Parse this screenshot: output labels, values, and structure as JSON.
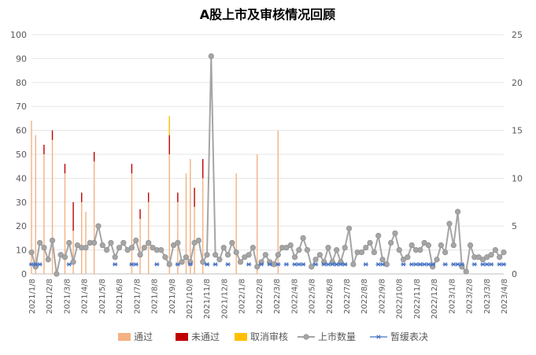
{
  "chart_data": {
    "type": "bar",
    "title": "A股上市及审核情况回顾",
    "y_left": {
      "min": 0,
      "max": 100,
      "ticks": [
        0,
        10,
        20,
        30,
        40,
        50,
        60,
        70,
        80,
        90,
        100
      ]
    },
    "y_right": {
      "min": 0,
      "max": 25,
      "ticks": [
        0,
        5,
        10,
        15,
        20,
        25
      ]
    },
    "x_tick_labels": [
      "2021/1/8",
      "2021/2/8",
      "2021/3/8",
      "2021/4/8",
      "2021/5/8",
      "2021/6/8",
      "2021/7/8",
      "2021/8/8",
      "2021/9/8",
      "2021/10/8",
      "2021/11/8",
      "2021/12/8",
      "2022/1/8",
      "2022/2/8",
      "2022/3/8",
      "2022/4/8",
      "2022/5/8",
      "2022/6/8",
      "2022/7/8",
      "2022/8/8",
      "2022/9/8",
      "2022/10/8",
      "2022/11/8",
      "2022/12/8",
      "2023/1/8",
      "2023/2/8",
      "2023/3/8",
      "2023/4/8"
    ],
    "colors": {
      "pass": "#F4B183",
      "fail": "#C00000",
      "cancel": "#FFC000",
      "listing": "#A5A5A5",
      "suspend": "#4472C4"
    },
    "legend": [
      "通过",
      "未通过",
      "取消审核",
      "上市数量",
      "暂缓表决"
    ],
    "listings": [
      9,
      3,
      13,
      11,
      6,
      14,
      0,
      8,
      7,
      13,
      5,
      12,
      11,
      11,
      13,
      13,
      20,
      12,
      10,
      13,
      7,
      11,
      13,
      10,
      11,
      14,
      8,
      11,
      13,
      11,
      10,
      10,
      7,
      4,
      12,
      13,
      5,
      7,
      5,
      13,
      14,
      5,
      8,
      91,
      8,
      6,
      11,
      8,
      13,
      9,
      5,
      7,
      8,
      11,
      3,
      5,
      8,
      5,
      4,
      8,
      11,
      11,
      12,
      7,
      10,
      15,
      10,
      3,
      6,
      8,
      5,
      11,
      5,
      10,
      5,
      11,
      19,
      4,
      9,
      9,
      11,
      13,
      9,
      16,
      6,
      4,
      13,
      17,
      10,
      6,
      7,
      12,
      10,
      10,
      13,
      12,
      3,
      6,
      12,
      9,
      21,
      12,
      26,
      3,
      1,
      12,
      7,
      7,
      6,
      7,
      8,
      10,
      7,
      9
    ],
    "pass_counts": [
      64,
      58,
      0,
      50,
      0,
      56,
      0,
      0,
      42,
      0,
      18,
      0,
      30,
      26,
      0,
      47,
      0,
      0,
      0,
      0,
      0,
      0,
      0,
      0,
      42,
      0,
      23,
      0,
      30,
      0,
      0,
      0,
      0,
      50,
      0,
      30,
      0,
      42,
      48,
      28,
      0,
      40,
      0,
      0,
      0,
      0,
      0,
      0,
      0,
      42,
      0,
      0,
      0,
      0,
      50,
      0,
      0,
      0,
      0,
      60,
      0,
      0,
      0,
      0,
      0,
      0,
      0,
      0,
      0,
      0,
      0,
      0,
      0,
      0,
      0,
      0,
      0,
      0,
      0,
      0,
      0,
      0,
      0,
      0,
      0,
      0,
      0,
      0,
      0,
      0,
      0,
      0,
      0,
      0,
      0,
      0,
      0,
      0,
      0,
      0,
      0,
      0,
      0,
      0,
      0,
      0,
      0,
      0,
      0,
      0,
      0,
      0,
      0,
      0
    ],
    "fail_counts": [
      0,
      0,
      0,
      4,
      0,
      4,
      0,
      0,
      4,
      0,
      12,
      0,
      4,
      0,
      0,
      4,
      0,
      0,
      0,
      0,
      0,
      0,
      0,
      0,
      4,
      0,
      4,
      0,
      4,
      0,
      0,
      0,
      0,
      8,
      0,
      4,
      0,
      0,
      0,
      8,
      0,
      8,
      0,
      0,
      0,
      0,
      0,
      0,
      0,
      0,
      0,
      0,
      0,
      0,
      0,
      0,
      0,
      0,
      0,
      0,
      0,
      0,
      0,
      0,
      0,
      0,
      0,
      0,
      0,
      0,
      0,
      0,
      0,
      0,
      0,
      0,
      0,
      0,
      0,
      0,
      0,
      0,
      0,
      0,
      0,
      0,
      0,
      0,
      0,
      0,
      0,
      0,
      0,
      0,
      0,
      0,
      0,
      0,
      0,
      0,
      0,
      0,
      0,
      0,
      0,
      0,
      0,
      0,
      0,
      0,
      0,
      0,
      0,
      0
    ],
    "cancel_counts": [
      0,
      0,
      0,
      0,
      0,
      0,
      0,
      0,
      0,
      0,
      0,
      0,
      0,
      0,
      0,
      0,
      0,
      0,
      0,
      0,
      0,
      0,
      0,
      0,
      0,
      0,
      0,
      0,
      0,
      0,
      0,
      0,
      0,
      8,
      0,
      0,
      0,
      0,
      0,
      0,
      0,
      0,
      0,
      0,
      0,
      0,
      0,
      0,
      0,
      0,
      0,
      0,
      0,
      0,
      0,
      0,
      0,
      0,
      0,
      0,
      0,
      0,
      0,
      0,
      0,
      0,
      0,
      0,
      0,
      0,
      0,
      0,
      0,
      0,
      0,
      0,
      0,
      0,
      0,
      0,
      0,
      0,
      0,
      0,
      0,
      0,
      0,
      0,
      0,
      0,
      0,
      0,
      0,
      0,
      0,
      0,
      0,
      0,
      0,
      0,
      0,
      0,
      0,
      0,
      0,
      0,
      0,
      0,
      0,
      0,
      0,
      0,
      0,
      0
    ],
    "suspend_weeks": [
      0,
      1,
      2,
      3,
      13,
      31,
      37,
      38,
      45,
      53,
      58,
      63,
      64,
      67,
      71,
      78,
      83,
      86,
      90,
      93,
      95,
      97,
      99,
      103,
      106,
      107,
      109,
      110,
      111,
      112,
      113,
      114,
      121,
      126,
      127,
      134,
      138,
      139,
      140,
      141,
      143,
      144,
      145,
      146,
      150,
      153,
      154,
      156,
      160,
      164,
      165,
      166,
      170,
      171
    ],
    "suspend_values": [
      1,
      1,
      1,
      1,
      1,
      1,
      1,
      1,
      1,
      1,
      1,
      1,
      1,
      1,
      1,
      1,
      1,
      1,
      1,
      1,
      1,
      1,
      1,
      1,
      1,
      1,
      1,
      1,
      1,
      1,
      1,
      1,
      1,
      1,
      1,
      1,
      1,
      1,
      1,
      1,
      1,
      1,
      1,
      1,
      1,
      1,
      1,
      1,
      1,
      1,
      1,
      1,
      1,
      1
    ]
  }
}
